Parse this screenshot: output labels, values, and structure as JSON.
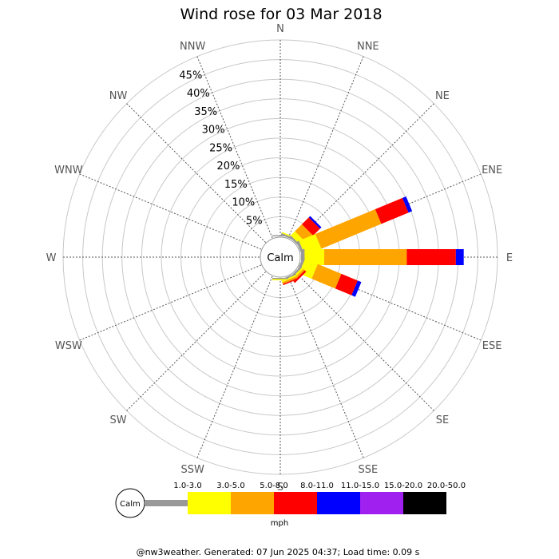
{
  "chart_data": {
    "type": "wind-rose",
    "title": "Wind rose for 03 Mar 2018",
    "calm_label": "Calm",
    "directions": [
      "N",
      "NNE",
      "NE",
      "ENE",
      "E",
      "ESE",
      "SE",
      "SSE",
      "S",
      "SSW",
      "SW",
      "WSW",
      "W",
      "WNW",
      "NW",
      "NNW"
    ],
    "rings": [
      5,
      10,
      15,
      20,
      25,
      30,
      35,
      40,
      45
    ],
    "ring_labels": [
      "5%",
      "10%",
      "15%",
      "20%",
      "25%",
      "30%",
      "35%",
      "40%",
      "45%"
    ],
    "r_max": 50,
    "legend_unit": "mph",
    "speed_bins": [
      {
        "label": "1.0-3.0",
        "color": "#999999"
      },
      {
        "label": "3.0-5.0",
        "color": "#ffff00"
      },
      {
        "label": "5.0-8.0",
        "color": "#ffa500"
      },
      {
        "label": "8.0-11.0",
        "color": "#ff0000"
      },
      {
        "label": "11.0-15.0",
        "color": "#0000ff"
      },
      {
        "label": "15.0-20.0",
        "color": "#a020f0"
      },
      {
        "label": "20.0-50.0",
        "color": "#000000"
      }
    ],
    "frequencies": {
      "N": [
        0.3,
        0,
        0,
        0,
        0,
        0,
        0
      ],
      "NNE": [
        0.5,
        0.3,
        0,
        0,
        0,
        0,
        0
      ],
      "NE": [
        0.5,
        1.5,
        2.5,
        2.5,
        0.5,
        0,
        0
      ],
      "ENE": [
        0.7,
        4.5,
        16.5,
        7.5,
        1.0,
        0,
        0
      ],
      "E": [
        0.9,
        5.0,
        21.0,
        12.5,
        2.0,
        0,
        0
      ],
      "ESE": [
        0.7,
        3.5,
        6.5,
        4.5,
        1.0,
        0,
        0
      ],
      "SE": [
        0.5,
        0.5,
        0.5,
        0.5,
        0,
        0,
        0
      ],
      "SSE": [
        0.4,
        0.4,
        0.5,
        0.3,
        0,
        0,
        0
      ],
      "S": [
        0.3,
        0.3,
        0,
        0,
        0,
        0,
        0
      ],
      "SSW": [
        0,
        0,
        0,
        0,
        0,
        0,
        0
      ],
      "SW": [
        0,
        0,
        0,
        0,
        0,
        0,
        0
      ],
      "WSW": [
        0,
        0,
        0,
        0,
        0,
        0,
        0
      ],
      "W": [
        0,
        0,
        0,
        0,
        0,
        0,
        0
      ],
      "WNW": [
        0,
        0,
        0,
        0,
        0,
        0,
        0
      ],
      "NW": [
        0,
        0,
        0,
        0,
        0,
        0,
        0
      ],
      "NNW": [
        0,
        0,
        0,
        0,
        0,
        0,
        0
      ]
    }
  },
  "footer": "@nw3weather. Generated: 07 Jun 2025 04:37; Load time: 0.09 s"
}
